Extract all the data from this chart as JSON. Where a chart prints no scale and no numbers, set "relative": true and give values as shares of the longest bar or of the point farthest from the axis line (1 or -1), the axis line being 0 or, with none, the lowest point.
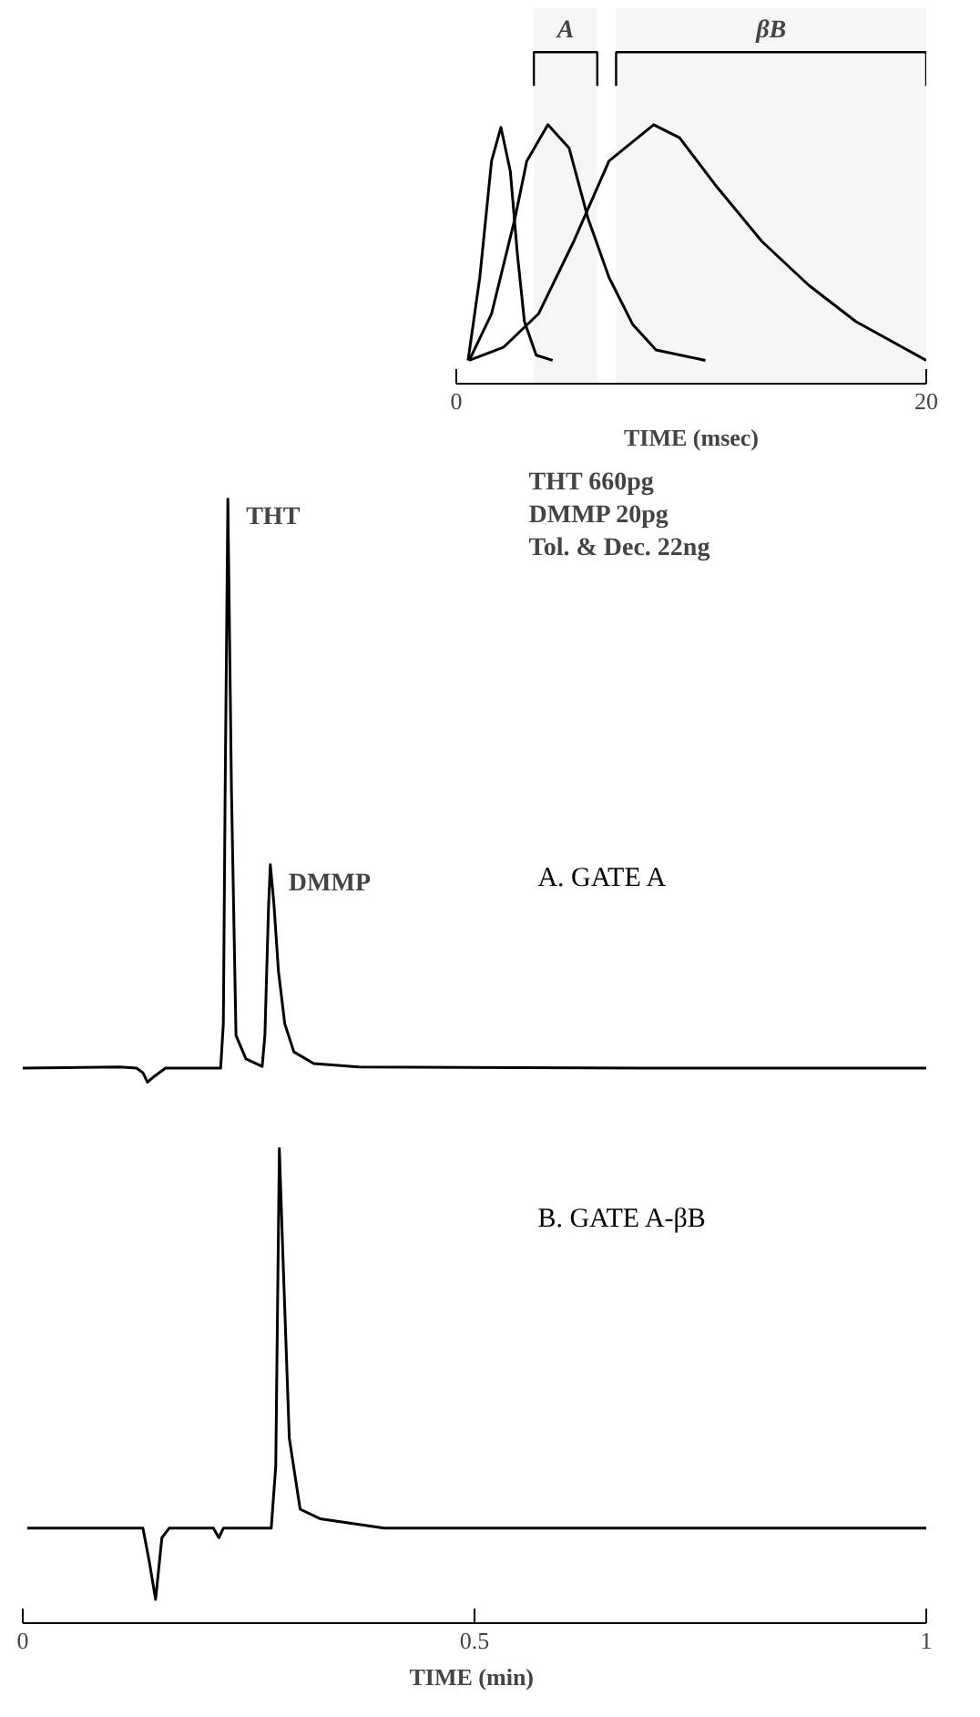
{
  "chart_data": [
    {
      "type": "line",
      "relative": true,
      "xlim": [
        0,
        1
      ],
      "tick_labels": false,
      "line_style": "solid",
      "series": [
        {
          "name": "A.  GATE A",
          "color": "#000000",
          "x": [
            0,
            0.108,
            0.126,
            0.133,
            0.138,
            0.144,
            0.158,
            0.219,
            0.222,
            0.224,
            0.227,
            0.231,
            0.236,
            0.247,
            0.265,
            0.268,
            0.272,
            0.274,
            0.278,
            0.283,
            0.29,
            0.3,
            0.322,
            0.372,
            0.685,
            1.0
          ],
          "values": [
            0.024,
            0.026,
            0.024,
            0.016,
            0.0,
            0.008,
            0.024,
            0.024,
            0.1,
            0.5,
            1.0,
            0.5,
            0.08,
            0.04,
            0.027,
            0.08,
            0.3,
            0.373,
            0.305,
            0.19,
            0.1,
            0.052,
            0.032,
            0.026,
            0.024,
            0.024
          ]
        }
      ],
      "annotations": [
        {
          "text": "THT",
          "x": 0.227,
          "y": 1.0
        },
        {
          "text": "DMMP",
          "x": 0.274,
          "y": 0.373
        },
        "THT   660pg",
        "DMMP   20pg",
        "Tol. & Dec.   22ng"
      ]
    },
    {
      "type": "line",
      "relative": true,
      "xlim": [
        0,
        1
      ],
      "xticks": [
        0,
        0.5,
        1
      ],
      "xlabel": "TIME  (min)",
      "tick_labels": "x",
      "line_style": "solid",
      "series": [
        {
          "name": "B.  GATE A-βB",
          "color": "#000000",
          "x": [
            0.005,
            0.133,
            0.14,
            0.147,
            0.154,
            0.162,
            0.211,
            0.217,
            0.222,
            0.275,
            0.28,
            0.284,
            0.288,
            0.295,
            0.307,
            0.329,
            0.4,
            1.0
          ],
          "values": [
            0.2,
            0.2,
            0.13,
            0.05,
            0.18,
            0.2,
            0.2,
            0.18,
            0.2,
            0.2,
            0.33,
            1.0,
            0.77,
            0.39,
            0.24,
            0.22,
            0.2,
            0.2
          ]
        }
      ]
    },
    {
      "type": "line",
      "relative": true,
      "xlim": [
        0,
        20
      ],
      "xticks": [
        0,
        20
      ],
      "xlabel": "TIME (msec)",
      "tick_labels": "x",
      "line_style": "solid",
      "series": [
        {
          "color": "#000000",
          "x": [
            0.5,
            1.0,
            1.5,
            1.9,
            2.3,
            2.6,
            2.9,
            3.4,
            4.1
          ],
          "values": [
            0.09,
            0.41,
            0.86,
            0.99,
            0.82,
            0.5,
            0.24,
            0.11,
            0.09
          ]
        },
        {
          "color": "#000000",
          "x": [
            0.55,
            1.5,
            2.5,
            3.0,
            3.9,
            4.8,
            5.6,
            6.5,
            7.5,
            8.5,
            10.6
          ],
          "values": [
            0.09,
            0.27,
            0.64,
            0.86,
            1.0,
            0.91,
            0.64,
            0.41,
            0.23,
            0.13,
            0.09
          ]
        },
        {
          "color": "#000000",
          "x": [
            0.55,
            2,
            3.5,
            5,
            6.5,
            8.4,
            9.5,
            11,
            13,
            15,
            17,
            20
          ],
          "values": [
            0.09,
            0.14,
            0.27,
            0.55,
            0.86,
            1.0,
            0.95,
            0.77,
            0.55,
            0.38,
            0.24,
            0.09
          ]
        }
      ],
      "bands": [
        {
          "axis": "x",
          "from": 3.3,
          "to": 6.0,
          "label": "A"
        },
        {
          "axis": "x",
          "from": 6.8,
          "to": 20,
          "label": "βB"
        }
      ]
    }
  ]
}
